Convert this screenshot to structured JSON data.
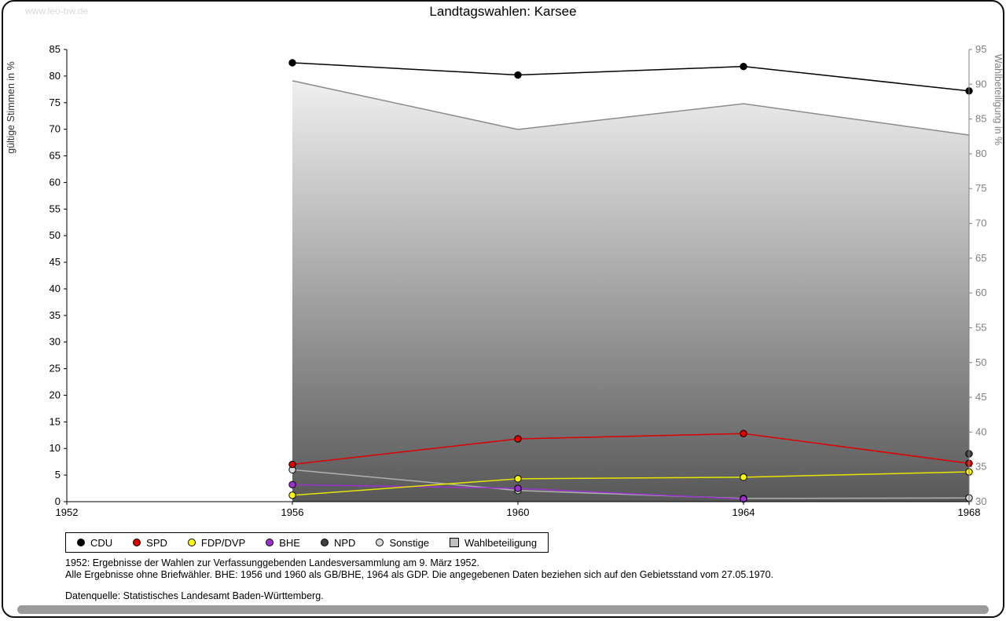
{
  "watermark": "www.leo-bw.de",
  "title": "Landtagswahlen: Karsee",
  "footnotes": [
    "1952: Ergebnisse der Wahlen zur Verfassunggebenden Landesversammlung am 9. März 1952.",
    "Alle Ergebnisse ohne Briefwähler. BHE: 1956 und 1960 als GB/BHE, 1964 als GDP. Die angegebenen Daten beziehen sich auf den Gebietsstand vom 27.05.1970.",
    "Datenquelle: Statistisches Landesamt Baden-Württemberg."
  ],
  "chart_data": {
    "type": "line",
    "title": "Landtagswahlen: Karsee",
    "x_axis": {
      "min": 1952,
      "max": 1968,
      "ticks": [
        1952,
        1956,
        1960,
        1964,
        1968
      ]
    },
    "left_axis": {
      "label": "gültige Stimmen in %",
      "min": 0,
      "max": 85,
      "step": 5,
      "color": "#333333"
    },
    "right_axis": {
      "label": "Wahlbeteiligung in %",
      "min": 30,
      "max": 95,
      "step": 5,
      "color": "#808080"
    },
    "grid": false,
    "legend_position": "bottom",
    "area_gradient": {
      "top": "#fbfbfb",
      "bottom": "#585858"
    },
    "series": [
      {
        "name": "CDU",
        "axis": "left",
        "marker": "circle",
        "color": "#000000",
        "line_color": "#000000",
        "x": [
          1956,
          1960,
          1964,
          1968
        ],
        "values": [
          82.5,
          80.2,
          81.8,
          77.2
        ]
      },
      {
        "name": "SPD",
        "axis": "left",
        "marker": "circle",
        "color": "#dd0000",
        "line_color": "#dd0000",
        "x": [
          1956,
          1960,
          1964,
          1968
        ],
        "values": [
          7.0,
          11.8,
          12.8,
          7.2
        ]
      },
      {
        "name": "FDP/DVP",
        "axis": "left",
        "marker": "circle",
        "color": "#ffff00",
        "line_color": "#e6e600",
        "x": [
          1956,
          1960,
          1964,
          1968
        ],
        "values": [
          1.2,
          4.3,
          4.6,
          5.6
        ]
      },
      {
        "name": "BHE",
        "axis": "left",
        "marker": "circle",
        "color": "#9933cc",
        "line_color": "#9933cc",
        "x": [
          1956,
          1960,
          1964
        ],
        "values": [
          3.2,
          2.5,
          0.5
        ]
      },
      {
        "name": "NPD",
        "axis": "left",
        "marker": "circle",
        "color": "#404040",
        "line_color": "#404040",
        "line": false,
        "x": [
          1968
        ],
        "values": [
          9.0
        ]
      },
      {
        "name": "Sonstige",
        "axis": "left",
        "marker": "circle",
        "color": "#d9d9d9",
        "line_color": "#b0b0b0",
        "x": [
          1956,
          1960,
          1964,
          1968
        ],
        "values": [
          6.0,
          2.1,
          0.6,
          0.7
        ]
      },
      {
        "name": "Wahlbeteiligung",
        "axis": "right",
        "marker": "square",
        "color": "#c0c0c0",
        "line_color": "#8c8c8c",
        "area": true,
        "x": [
          1956,
          1960,
          1964,
          1968
        ],
        "values": [
          90.5,
          83.5,
          87.2,
          82.7
        ]
      }
    ]
  }
}
